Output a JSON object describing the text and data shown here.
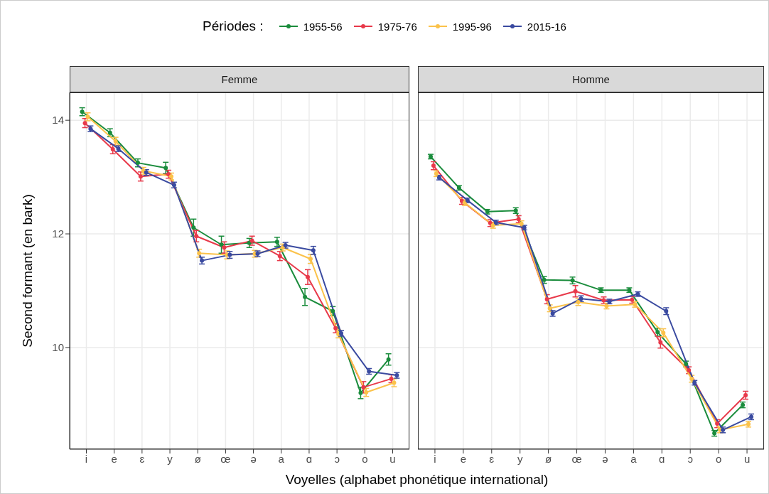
{
  "chart_data": [
    {
      "type": "line",
      "title": "Femme",
      "xlabel": "Voyelles (alphabet phonétique international)",
      "ylabel": "Second formant (en bark)",
      "legend_title": "Périodes :",
      "legend": "top",
      "grid": true,
      "marker": "circle",
      "categories": [
        "i",
        "e",
        "ɛ",
        "y",
        "ø",
        "œ",
        "ə",
        "a",
        "ɑ",
        "ɔ",
        "o",
        "u"
      ],
      "ylim": [
        8.21,
        14.49
      ],
      "yticks": [
        10,
        12,
        14
      ],
      "series": [
        {
          "name": "1955-56",
          "color": "#1a8c3c",
          "values": [
            14.15,
            13.78,
            13.25,
            13.16,
            12.11,
            11.81,
            11.84,
            11.86,
            10.89,
            10.64,
            9.2,
            9.79
          ],
          "errors": [
            0.07,
            0.07,
            0.07,
            0.1,
            0.15,
            0.15,
            0.08,
            0.08,
            0.15,
            0.08,
            0.1,
            0.1
          ]
        },
        {
          "name": "1975-76",
          "color": "#e8394a",
          "values": [
            13.95,
            13.49,
            13.01,
            13.05,
            11.96,
            11.76,
            11.88,
            11.61,
            11.24,
            10.34,
            9.3,
            9.45
          ],
          "errors": [
            0.08,
            0.08,
            0.08,
            0.07,
            0.1,
            0.1,
            0.08,
            0.08,
            0.13,
            0.08,
            0.1,
            0.07
          ]
        },
        {
          "name": "1995-96",
          "color": "#fbc24a",
          "values": [
            14.06,
            13.63,
            13.11,
            13.01,
            11.66,
            11.63,
            11.65,
            11.76,
            11.56,
            10.24,
            9.21,
            9.38
          ],
          "errors": [
            0.07,
            0.07,
            0.06,
            0.06,
            0.07,
            0.07,
            0.06,
            0.06,
            0.08,
            0.07,
            0.07,
            0.07
          ]
        },
        {
          "name": "2015-16",
          "color": "#3a4aa0",
          "values": [
            13.85,
            13.5,
            13.08,
            12.86,
            11.53,
            11.63,
            11.65,
            11.8,
            11.71,
            10.25,
            9.58,
            9.51
          ],
          "errors": [
            0.05,
            0.05,
            0.05,
            0.05,
            0.06,
            0.06,
            0.05,
            0.05,
            0.07,
            0.05,
            0.05,
            0.05
          ]
        }
      ]
    },
    {
      "type": "line",
      "title": "Homme",
      "grid": true,
      "marker": "circle",
      "tick_labels": "x",
      "categories": [
        "i",
        "e",
        "ɛ",
        "y",
        "ø",
        "œ",
        "ə",
        "a",
        "ɑ",
        "ɔ",
        "o",
        "u"
      ],
      "ylim": [
        8.21,
        14.49
      ],
      "yticks": [
        10,
        12,
        14
      ],
      "series": [
        {
          "name": "1955-56",
          "color": "#1a8c3c",
          "values": [
            13.36,
            12.81,
            12.39,
            12.41,
            11.19,
            11.18,
            11.01,
            11.01,
            10.27,
            9.71,
            8.49,
            8.99
          ],
          "errors": [
            0.04,
            0.04,
            0.04,
            0.05,
            0.06,
            0.06,
            0.04,
            0.04,
            0.07,
            0.05,
            0.05,
            0.05
          ]
        },
        {
          "name": "1975-76",
          "color": "#e8394a",
          "values": [
            13.2,
            12.58,
            12.19,
            12.26,
            10.85,
            10.99,
            10.83,
            10.84,
            10.09,
            9.6,
            8.66,
            9.16
          ],
          "errors": [
            0.07,
            0.06,
            0.06,
            0.06,
            0.08,
            0.1,
            0.06,
            0.06,
            0.1,
            0.06,
            0.07,
            0.07
          ]
        },
        {
          "name": "1995-96",
          "color": "#fbc24a",
          "values": [
            13.06,
            12.55,
            12.15,
            12.18,
            10.69,
            10.8,
            10.73,
            10.76,
            10.26,
            9.45,
            8.55,
            8.65
          ],
          "errors": [
            0.05,
            0.05,
            0.05,
            0.05,
            0.06,
            0.06,
            0.05,
            0.05,
            0.07,
            0.06,
            0.05,
            0.05
          ]
        },
        {
          "name": "2015-16",
          "color": "#3a4aa0",
          "values": [
            12.99,
            12.59,
            12.2,
            12.11,
            10.6,
            10.86,
            10.81,
            10.94,
            10.64,
            9.38,
            8.55,
            8.78
          ],
          "errors": [
            0.04,
            0.04,
            0.04,
            0.04,
            0.05,
            0.05,
            0.04,
            0.04,
            0.06,
            0.04,
            0.05,
            0.05
          ]
        }
      ]
    }
  ]
}
